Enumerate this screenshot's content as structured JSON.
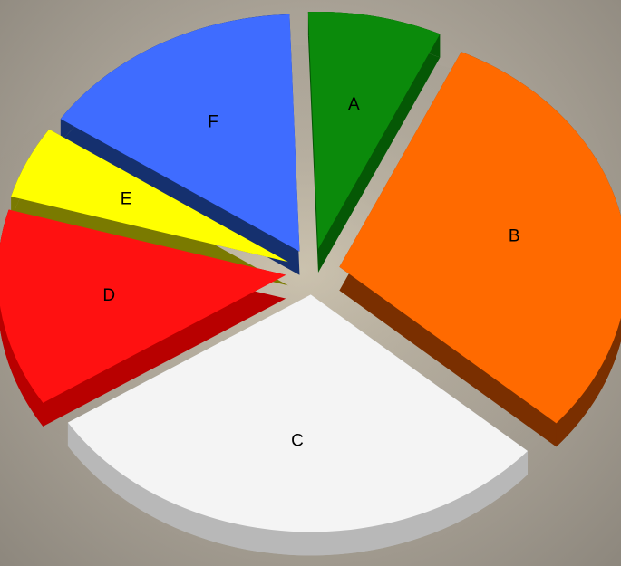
{
  "chart_data": {
    "type": "pie",
    "style": "3d-exploded",
    "title": "",
    "legend": "none",
    "slices": [
      {
        "label": "A",
        "value": 7.5,
        "color": "#0b8a0b",
        "side_color": "#055805"
      },
      {
        "label": "B",
        "value": 29.5,
        "color": "#ff6a00",
        "side_color": "#7a2f00"
      },
      {
        "label": "C",
        "value": 29.5,
        "color": "#f4f4f4",
        "side_color": "#b8b8b8"
      },
      {
        "label": "D",
        "value": 13.5,
        "color": "#ff1111",
        "side_color": "#b80000"
      },
      {
        "label": "E",
        "value": 5.0,
        "color": "#ffff00",
        "side_color": "#7a7a00"
      },
      {
        "label": "F",
        "value": 15.0,
        "color": "#3f6cff",
        "side_color": "#15306e"
      }
    ]
  }
}
